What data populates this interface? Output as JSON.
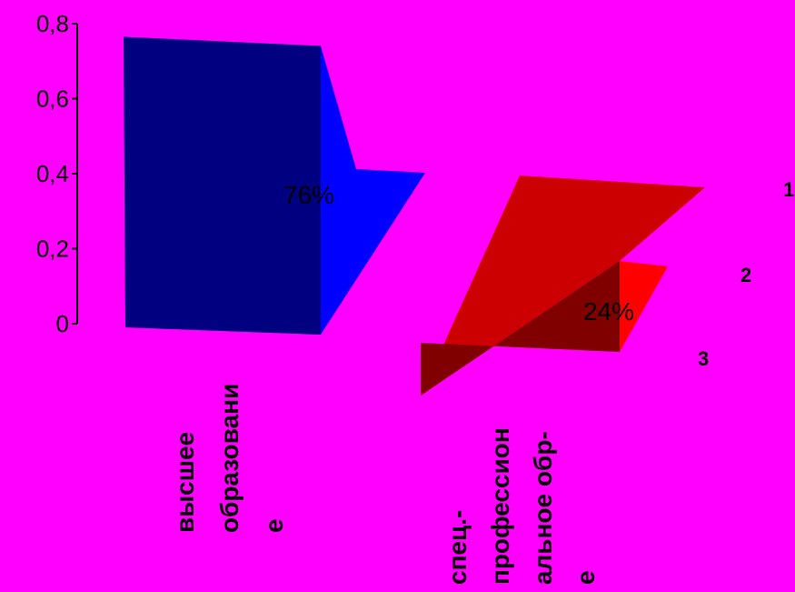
{
  "chart_data": {
    "type": "bar",
    "categories": [
      [
        "высшее",
        "образовани",
        "е"
      ],
      [
        "спец.-",
        "профессион",
        "альное обр-",
        "е"
      ]
    ],
    "values": [
      0.76,
      0.24
    ],
    "data_labels": [
      "76%",
      "24%"
    ],
    "depth_labels": [
      "1",
      "2",
      "3"
    ],
    "yticks": [
      "0",
      "0,2",
      "0,4",
      "0,6",
      "0,8"
    ],
    "ylim": [
      0,
      0.8
    ],
    "colors": {
      "background": "#ff00ff",
      "bar1_front": "#000080",
      "bar1_side": "#0000ff",
      "bar2_front": "#800000",
      "bar2_top": "#cc0000",
      "bar2_side": "#ff0000"
    },
    "grid": false,
    "legend": "none"
  }
}
